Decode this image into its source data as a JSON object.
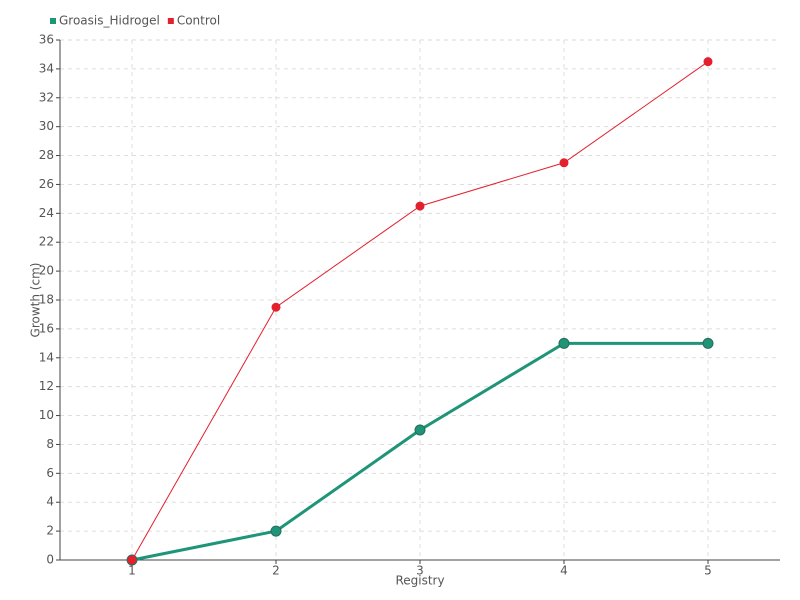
{
  "chart_data": {
    "type": "line",
    "x_label": "Registry",
    "y_label": "Growth (cm)",
    "categories": [
      "1",
      "2",
      "3",
      "4",
      "5"
    ],
    "series": [
      {
        "name": "Groasis_Hidrogel",
        "color": "#1e9478",
        "values": [
          0,
          2,
          9,
          15,
          15
        ]
      },
      {
        "name": "Control",
        "color": "#e3202d",
        "values": [
          0,
          17.5,
          24.5,
          27.5,
          34.5
        ]
      }
    ],
    "ylim": [
      0,
      36
    ],
    "yticks": [
      0,
      2,
      4,
      6,
      8,
      10,
      12,
      14,
      16,
      18,
      20,
      22,
      24,
      26,
      28,
      30,
      32,
      34,
      36
    ],
    "grid": true,
    "legend": "top-left"
  }
}
